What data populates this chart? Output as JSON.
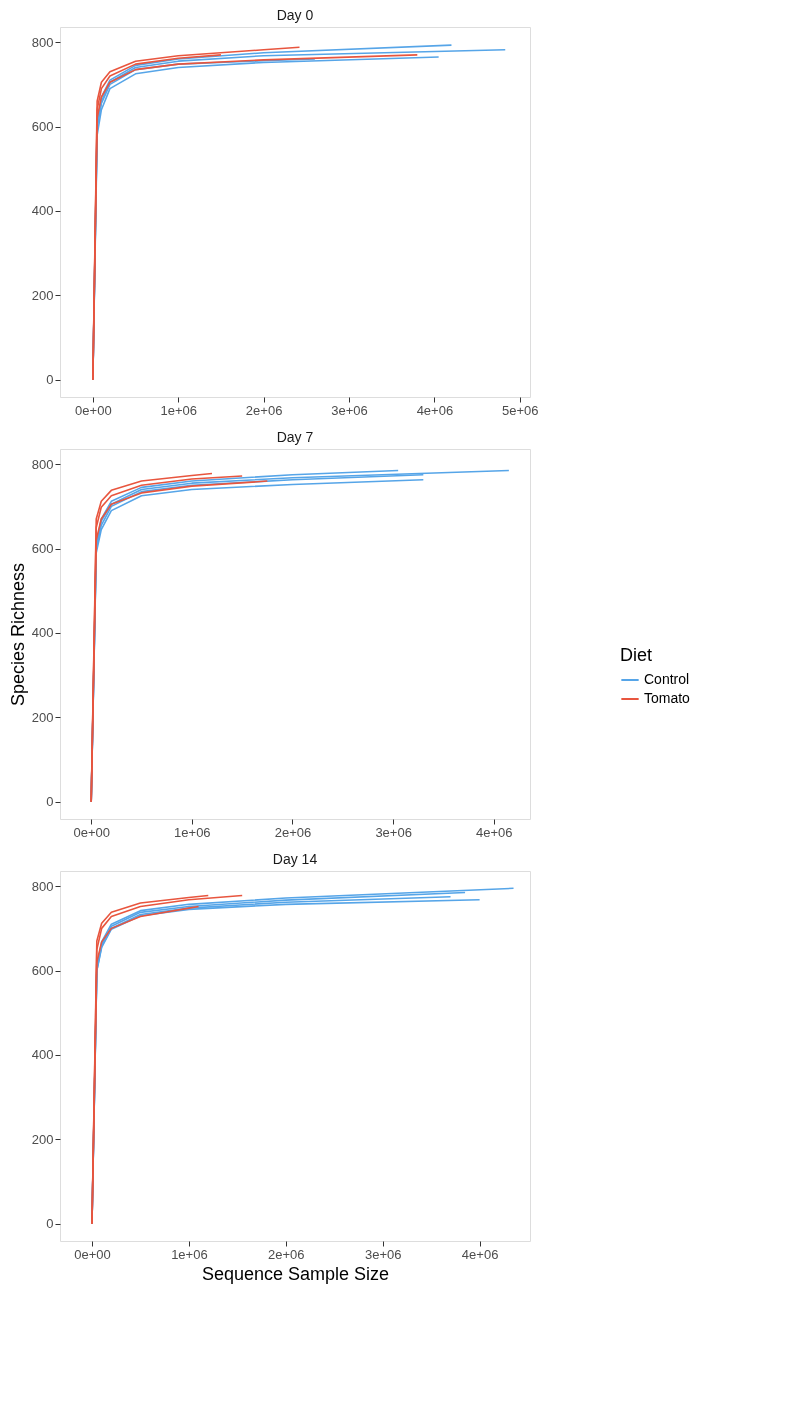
{
  "chart_data": [
    {
      "type": "line",
      "title": "Day 0",
      "xlim": [
        -385000,
        5120000
      ],
      "ylim": [
        -41,
        836
      ],
      "xticks": [
        {
          "value": 0,
          "label": "0e+00"
        },
        {
          "value": 1000000,
          "label": "1e+06"
        },
        {
          "value": 2000000,
          "label": "2e+06"
        },
        {
          "value": 3000000,
          "label": "3e+06"
        },
        {
          "value": 4000000,
          "label": "4e+06"
        },
        {
          "value": 5000000,
          "label": "5e+06"
        }
      ],
      "yticks": [
        0,
        200,
        400,
        600,
        800
      ],
      "legend": "right",
      "legend_title": "Diet",
      "series": [
        {
          "name": "Control",
          "color": "#56a5e8",
          "x": [
            0,
            50000,
            100000,
            200000,
            500000,
            1000000,
            2000000,
            4830000
          ],
          "values": [
            0,
            600,
            660,
            705,
            740,
            755,
            768,
            782
          ]
        },
        {
          "color": "#56a5e8",
          "x": [
            0,
            50000,
            100000,
            200000,
            500000,
            1000000,
            2000000,
            4200000
          ],
          "values": [
            0,
            610,
            670,
            710,
            745,
            760,
            775,
            793
          ]
        },
        {
          "color": "#56a5e8",
          "x": [
            0,
            50000,
            100000,
            200000,
            500000,
            1000000,
            2000000,
            4050000
          ],
          "values": [
            0,
            580,
            640,
            690,
            725,
            740,
            752,
            765
          ]
        },
        {
          "color": "#56a5e8",
          "x": [
            0,
            50000,
            100000,
            200000,
            500000,
            1000000,
            2000000,
            2600000
          ],
          "values": [
            0,
            600,
            655,
            700,
            735,
            748,
            756,
            760
          ]
        },
        {
          "name": "Tomato",
          "color": "#e8553e",
          "x": [
            0,
            50000,
            100000,
            200000,
            500000,
            1000000,
            2000000,
            2420000
          ],
          "values": [
            0,
            660,
            705,
            730,
            755,
            768,
            782,
            788
          ]
        },
        {
          "color": "#e8553e",
          "x": [
            0,
            50000,
            100000,
            200000,
            500000,
            1000000,
            2000000,
            3800000
          ],
          "values": [
            0,
            620,
            670,
            705,
            735,
            748,
            758,
            770
          ]
        },
        {
          "color": "#e8553e",
          "x": [
            0,
            50000,
            100000,
            200000,
            500000,
            1000000,
            1500000
          ],
          "values": [
            0,
            640,
            690,
            720,
            748,
            762,
            770
          ]
        }
      ]
    },
    {
      "type": "line",
      "title": "Day 7",
      "ylabel": "Species Richness",
      "xlim": [
        -310000,
        4360000
      ],
      "ylim": [
        -41,
        836
      ],
      "xticks": [
        {
          "value": 0,
          "label": "0e+00"
        },
        {
          "value": 1000000,
          "label": "1e+06"
        },
        {
          "value": 2000000,
          "label": "2e+06"
        },
        {
          "value": 3000000,
          "label": "3e+06"
        },
        {
          "value": 4000000,
          "label": "4e+06"
        }
      ],
      "yticks": [
        0,
        200,
        400,
        600,
        800
      ],
      "series": [
        {
          "name": "Control",
          "color": "#56a5e8",
          "x": [
            0,
            50000,
            100000,
            200000,
            500000,
            1000000,
            2000000,
            4150000
          ],
          "values": [
            0,
            600,
            665,
            705,
            740,
            755,
            768,
            785
          ]
        },
        {
          "color": "#56a5e8",
          "x": [
            0,
            50000,
            100000,
            200000,
            500000,
            1000000,
            2000000,
            3050000
          ],
          "values": [
            0,
            610,
            670,
            712,
            745,
            760,
            775,
            785
          ]
        },
        {
          "color": "#56a5e8",
          "x": [
            0,
            50000,
            100000,
            200000,
            500000,
            1000000,
            2000000,
            3300000
          ],
          "values": [
            0,
            590,
            645,
            690,
            725,
            740,
            752,
            763
          ]
        },
        {
          "color": "#56a5e8",
          "x": [
            0,
            50000,
            100000,
            200000,
            500000,
            1000000,
            2000000,
            3300000
          ],
          "values": [
            0,
            600,
            655,
            700,
            735,
            750,
            763,
            775
          ]
        },
        {
          "name": "Tomato",
          "color": "#e8553e",
          "x": [
            0,
            50000,
            100000,
            200000,
            500000,
            1000000,
            1200000
          ],
          "values": [
            0,
            670,
            712,
            738,
            760,
            773,
            778
          ]
        },
        {
          "color": "#e8553e",
          "x": [
            0,
            50000,
            100000,
            200000,
            500000,
            1000000,
            1750000
          ],
          "values": [
            0,
            620,
            670,
            705,
            732,
            748,
            760
          ]
        },
        {
          "color": "#e8553e",
          "x": [
            0,
            50000,
            100000,
            200000,
            500000,
            1000000,
            1500000
          ],
          "values": [
            0,
            650,
            698,
            725,
            750,
            765,
            772
          ]
        }
      ]
    },
    {
      "type": "line",
      "title": "Day 14",
      "xlabel": "Sequence Sample Size",
      "xlim": [
        -330000,
        4520000
      ],
      "ylim": [
        -41,
        836
      ],
      "xticks": [
        {
          "value": 0,
          "label": "0e+00"
        },
        {
          "value": 1000000,
          "label": "1e+06"
        },
        {
          "value": 2000000,
          "label": "2e+06"
        },
        {
          "value": 3000000,
          "label": "3e+06"
        },
        {
          "value": 4000000,
          "label": "4e+06"
        }
      ],
      "yticks": [
        0,
        200,
        400,
        600,
        800
      ],
      "legend": false,
      "series": [
        {
          "name": "Control",
          "color": "#56a5e8",
          "x": [
            0,
            50000,
            100000,
            200000,
            500000,
            1000000,
            2000000,
            4350000
          ],
          "values": [
            0,
            610,
            668,
            710,
            742,
            757,
            772,
            795
          ]
        },
        {
          "color": "#56a5e8",
          "x": [
            0,
            50000,
            100000,
            200000,
            500000,
            1000000,
            2000000,
            4000000
          ],
          "values": [
            0,
            600,
            655,
            698,
            730,
            745,
            757,
            768
          ]
        },
        {
          "color": "#56a5e8",
          "x": [
            0,
            50000,
            100000,
            200000,
            500000,
            1000000,
            2000000,
            3850000
          ],
          "values": [
            0,
            605,
            662,
            705,
            738,
            752,
            767,
            785
          ]
        },
        {
          "color": "#56a5e8",
          "x": [
            0,
            50000,
            100000,
            200000,
            500000,
            1000000,
            2000000,
            3700000
          ],
          "values": [
            0,
            600,
            658,
            700,
            733,
            748,
            762,
            775
          ]
        },
        {
          "name": "Tomato",
          "color": "#e8553e",
          "x": [
            0,
            50000,
            100000,
            200000,
            500000,
            1000000,
            1200000
          ],
          "values": [
            0,
            670,
            712,
            738,
            760,
            773,
            778
          ]
        },
        {
          "color": "#e8553e",
          "x": [
            0,
            50000,
            100000,
            200000,
            500000,
            1000000,
            1550000
          ],
          "values": [
            0,
            650,
            700,
            728,
            752,
            768,
            778
          ]
        },
        {
          "color": "#e8553e",
          "x": [
            0,
            50000,
            100000,
            200000,
            500000,
            1000000,
            1100000
          ],
          "values": [
            0,
            620,
            668,
            700,
            728,
            748,
            752
          ]
        }
      ]
    }
  ]
}
